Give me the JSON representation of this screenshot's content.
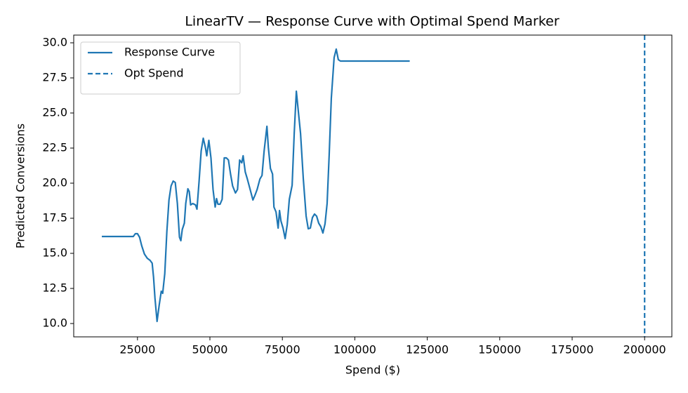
{
  "chart_data": {
    "type": "line",
    "title": "LinearTV — Response Curve with Optimal Spend Marker",
    "xlabel": "Spend ($)",
    "ylabel": "Predicted Conversions",
    "x": [
      12700,
      23550,
      24270,
      25000,
      25720,
      26450,
      27400,
      28380,
      29350,
      30070,
      30550,
      31040,
      31760,
      32490,
      33210,
      33700,
      34420,
      35140,
      35870,
      36590,
      37320,
      38040,
      38770,
      39490,
      39970,
      40460,
      41180,
      41660,
      42390,
      42870,
      43350,
      44080,
      45040,
      45530,
      46250,
      46980,
      47700,
      48430,
      48910,
      49630,
      50360,
      51080,
      51810,
      52290,
      52770,
      53500,
      54220,
      54940,
      55670,
      56390,
      57120,
      57840,
      58810,
      59530,
      60260,
      60980,
      61460,
      62190,
      62910,
      63880,
      64840,
      65570,
      66290,
      67260,
      67980,
      68710,
      69670,
      70160,
      70880,
      71610,
      72090,
      72810,
      73540,
      74020,
      74510,
      75230,
      75960,
      76680,
      77400,
      78370,
      79090,
      79820,
      80540,
      81270,
      82230,
      83200,
      83930,
      84650,
      85370,
      86100,
      86820,
      87540,
      88270,
      88990,
      89720,
      90440,
      91160,
      91890,
      92860,
      93580,
      94310,
      95030,
      118940
    ],
    "series": [
      {
        "name": "Response Curve",
        "color": "#1f77b4",
        "values": [
          16.2,
          16.2,
          16.4,
          16.4,
          16.15,
          15.55,
          14.95,
          14.65,
          14.5,
          14.3,
          13.3,
          11.8,
          10.15,
          11.3,
          12.3,
          12.15,
          13.55,
          16.55,
          18.8,
          19.8,
          20.15,
          20.05,
          18.55,
          16.15,
          15.9,
          16.7,
          17.15,
          18.55,
          19.6,
          19.4,
          18.45,
          18.55,
          18.45,
          18.15,
          20.1,
          22.3,
          23.2,
          22.55,
          21.95,
          23.05,
          21.8,
          19.55,
          18.3,
          18.9,
          18.5,
          18.5,
          18.85,
          21.8,
          21.8,
          21.65,
          20.65,
          19.8,
          19.3,
          19.55,
          21.65,
          21.45,
          21.95,
          20.8,
          20.3,
          19.55,
          18.8,
          19.15,
          19.55,
          20.3,
          20.55,
          22.3,
          24.05,
          22.55,
          21.05,
          20.65,
          18.3,
          17.95,
          16.8,
          18.05,
          17.3,
          16.8,
          16.05,
          17.05,
          18.85,
          19.85,
          23.55,
          26.55,
          25.05,
          23.55,
          20.3,
          17.65,
          16.75,
          16.8,
          17.55,
          17.8,
          17.65,
          17.15,
          16.9,
          16.45,
          17.1,
          18.55,
          22.05,
          26.05,
          28.95,
          29.55,
          28.8,
          28.7,
          28.7
        ]
      }
    ],
    "vlines": [
      {
        "name": "Opt Spend",
        "x": 200000,
        "color": "#1f77b4",
        "style": "dashed"
      }
    ],
    "xlim": [
      3000,
      209400
    ],
    "ylim": [
      9.05,
      30.55
    ],
    "xticks": [
      25000,
      50000,
      75000,
      100000,
      125000,
      150000,
      175000,
      200000
    ],
    "yticks": [
      {
        "value": 10,
        "label": "10.0"
      },
      {
        "value": 12.5,
        "label": "12.5"
      },
      {
        "value": 15,
        "label": "15.0"
      },
      {
        "value": 17.5,
        "label": "17.5"
      },
      {
        "value": 20,
        "label": "20.0"
      },
      {
        "value": 22.5,
        "label": "22.5"
      },
      {
        "value": 25,
        "label": "25.0"
      },
      {
        "value": 27.5,
        "label": "27.5"
      },
      {
        "value": 30,
        "label": "30.0"
      }
    ],
    "grid": false,
    "legend": "upper left"
  }
}
